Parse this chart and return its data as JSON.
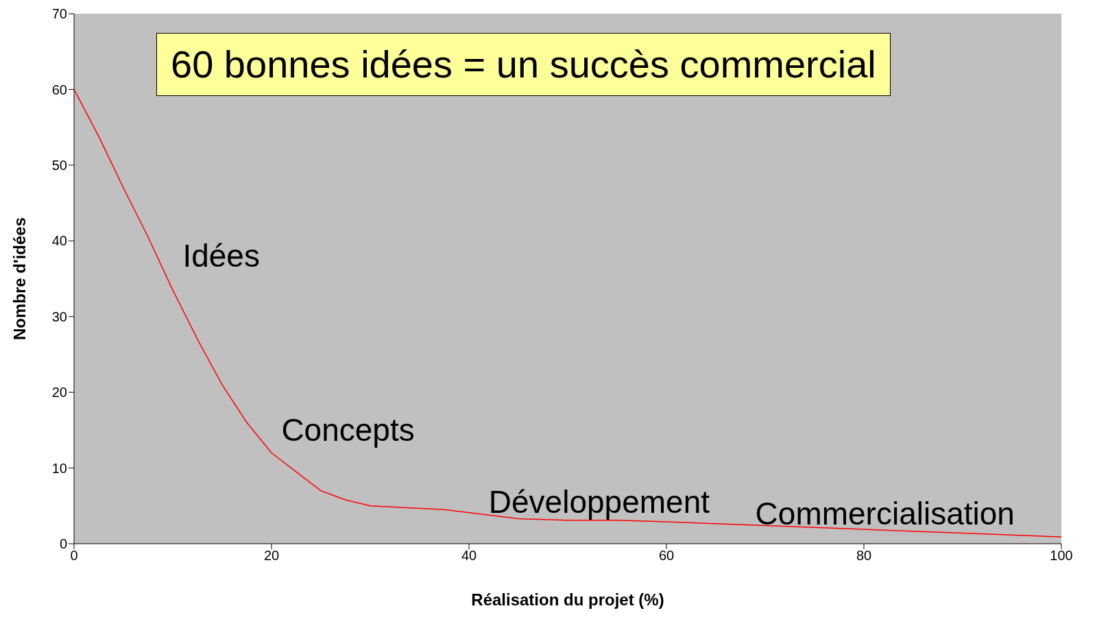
{
  "chart_data": {
    "type": "line",
    "title": "60 bonnes idées = un succès commercial",
    "xlabel": "Réalisation du projet (%)",
    "ylabel": "Nombre d'idées",
    "x": [
      0,
      2.5,
      5,
      7.5,
      10,
      12.5,
      15,
      16.5,
      17.5,
      20,
      22.5,
      24,
      25,
      27.5,
      30,
      37.5,
      45,
      50,
      55,
      60,
      70,
      80,
      90,
      100
    ],
    "series": [
      {
        "color": "#ff0000",
        "values": [
          60,
          53.8,
          47,
          40.5,
          33.5,
          27,
          21,
          18,
          16,
          12,
          9.5,
          8,
          7,
          5.8,
          5,
          4.5,
          3.3,
          3.1,
          3.1,
          2.9,
          2.4,
          1.9,
          1.4,
          0.9
        ]
      }
    ],
    "xlim": [
      0,
      100
    ],
    "xticks": [
      0,
      20,
      40,
      60,
      80,
      100
    ],
    "ylim": [
      0,
      70
    ],
    "yticks": [
      0,
      10,
      20,
      30,
      40,
      50,
      60,
      70
    ],
    "marker": "none",
    "line_style": "solid",
    "grid": false,
    "annotations": [
      "Idées",
      "Concepts",
      "Développement",
      "Commercialisation"
    ]
  }
}
